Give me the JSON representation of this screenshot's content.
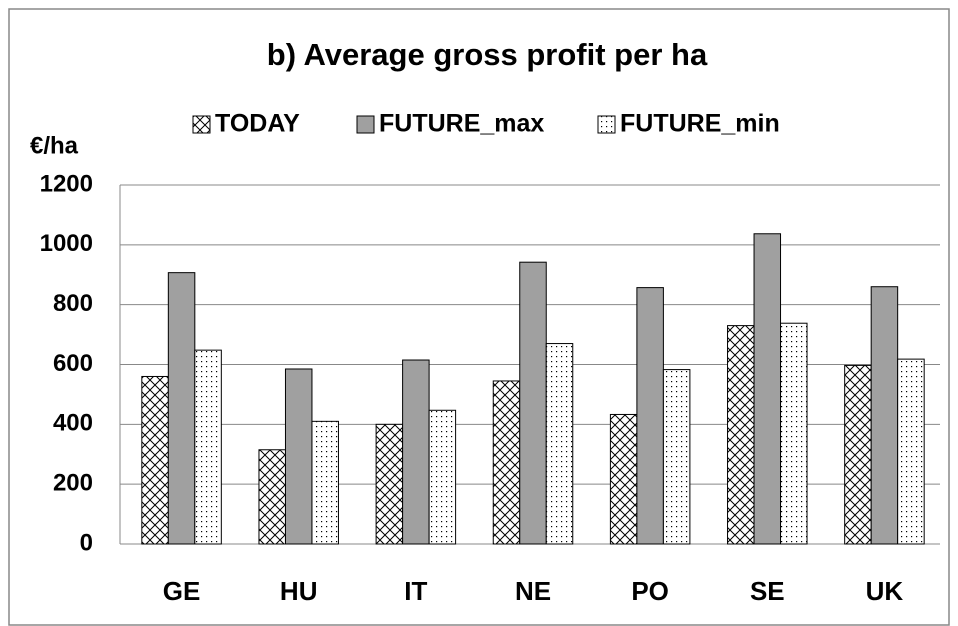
{
  "chart_data": {
    "type": "bar",
    "title": "b) Average gross profit per ha",
    "y_axis_label": "€/ha",
    "categories": [
      "GE",
      "HU",
      "IT",
      "NE",
      "PO",
      "SE",
      "UK"
    ],
    "series": [
      {
        "name": "TODAY",
        "color": "#ffffff",
        "pattern": "crosshatch",
        "values": [
          560,
          315,
          400,
          545,
          433,
          730,
          597
        ]
      },
      {
        "name": "FUTURE_max",
        "color": "#a0a0a0",
        "pattern": "solid",
        "values": [
          907,
          585,
          615,
          942,
          857,
          1037,
          860
        ]
      },
      {
        "name": "FUTURE_min",
        "color": "#ffffff",
        "pattern": "dots",
        "values": [
          648,
          410,
          447,
          670,
          583,
          738,
          618
        ]
      }
    ],
    "ylim": [
      0,
      1200
    ],
    "yticks": [
      0,
      200,
      400,
      600,
      800,
      1000,
      1200
    ],
    "grid": true,
    "legend": "top"
  }
}
